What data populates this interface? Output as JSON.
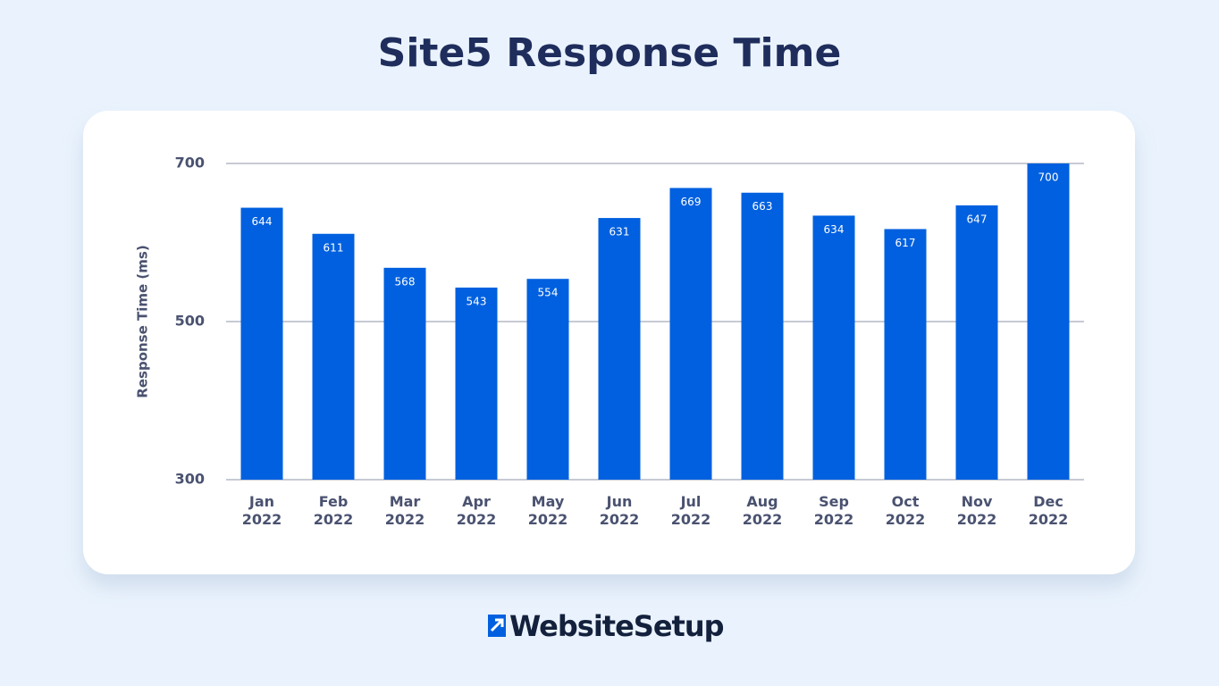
{
  "chart_data": {
    "type": "bar",
    "title": "Site5 Response Time",
    "y_label": "Response Time (ms)",
    "categories": [
      "Jan 2022",
      "Feb 2022",
      "Mar 2022",
      "Apr 2022",
      "May 2022",
      "Jun 2022",
      "Jul 2022",
      "Aug 2022",
      "Sep 2022",
      "Oct 2022",
      "Nov 2022",
      "Dec 2022"
    ],
    "values": [
      644,
      611,
      568,
      543,
      554,
      631,
      669,
      663,
      634,
      617,
      647,
      700
    ],
    "color": "#0060df",
    "ylim": [
      300,
      700
    ],
    "yticks": [
      300,
      500,
      700
    ],
    "grid": true
  },
  "footer": {
    "brand": "WebsiteSetup"
  }
}
